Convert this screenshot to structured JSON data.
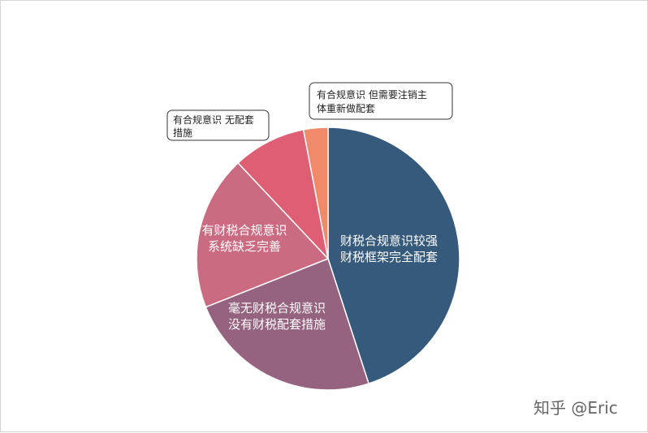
{
  "chart_data": {
    "type": "pie",
    "slices": [
      {
        "label_lines": [
          "财税合规意识较强",
          "财税框架完全配套"
        ],
        "value": 45,
        "color": "#355a7c"
      },
      {
        "label_lines": [
          "毫无财税合规意识",
          "没有财税配套措施"
        ],
        "value": 24,
        "color": "#95627f"
      },
      {
        "label_lines": [
          "有财税合规意识",
          "系统缺乏完善"
        ],
        "value": 19,
        "color": "#cb6b81"
      },
      {
        "label_lines": [
          "有合规意识 无配套",
          "措施"
        ],
        "value": 9,
        "color": "#de5f73"
      },
      {
        "label_lines": [
          "有合规意识 但需要注销主",
          "体重新做配套"
        ],
        "value": 3,
        "color": "#f08a6a"
      }
    ]
  },
  "watermark": "知乎 @Eric"
}
